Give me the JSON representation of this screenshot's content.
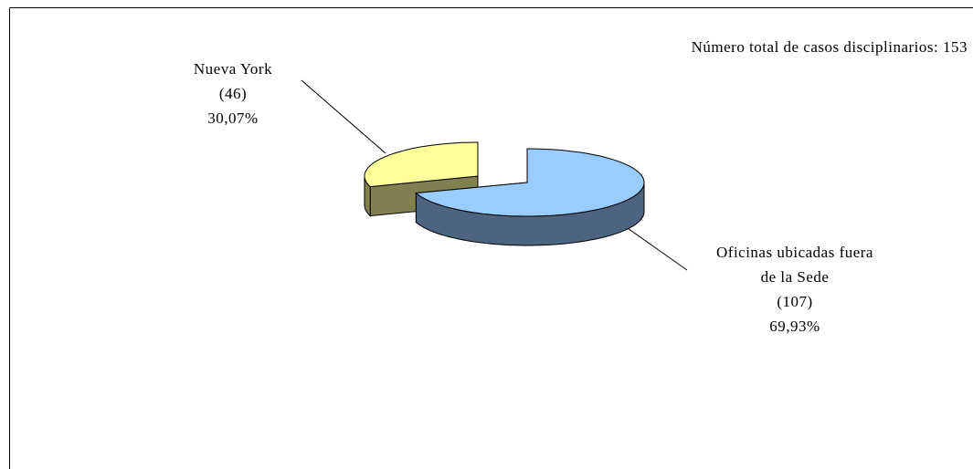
{
  "chart_data": {
    "type": "pie3d",
    "annotation": "Número total de casos disciplinarios: 153",
    "categories": [
      "Nueva York",
      "Oficinas ubicadas fuera de la Sede"
    ],
    "values": [
      46,
      107
    ],
    "value_labels": [
      "(46)",
      "(107)"
    ],
    "percents": [
      30.07,
      69.93
    ],
    "percent_labels": [
      "30,07%",
      "69,93%"
    ],
    "colors": [
      "#ffff99",
      "#99ccff"
    ],
    "side_colors": [
      "#808050",
      "#4d6480"
    ]
  }
}
